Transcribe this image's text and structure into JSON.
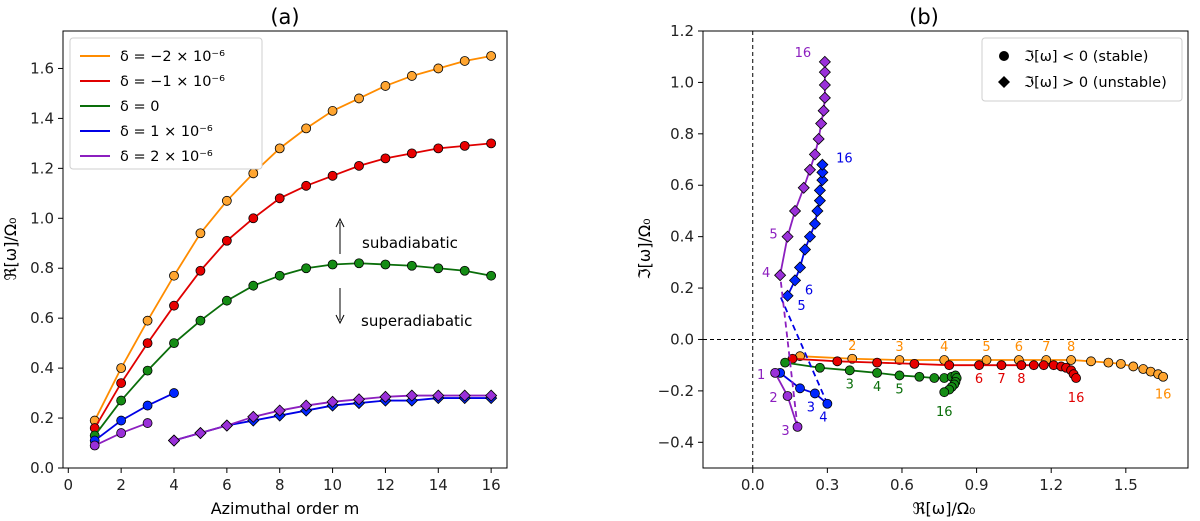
{
  "colors": {
    "d_m2": "#ff8c00",
    "d_m1": "#e00000",
    "d_0": "#0a6e0a",
    "d_p1": "#0000e6",
    "d_p2": "#8c1fbf",
    "marker_m2": "#ffa530",
    "marker_m1": "#e80000",
    "marker_0": "#148c14",
    "marker_p1": "#0026ff",
    "marker_p2": "#9a30d9"
  },
  "chart_data": [
    {
      "id": "a",
      "type": "line",
      "title": "(a)",
      "xlabel": "Azimuthal order m",
      "ylabel": "ℜ[ω]/Ω₀",
      "xlim": [
        -0.2,
        16.6
      ],
      "ylim": [
        0,
        1.75
      ],
      "xticks": [
        "0",
        "2",
        "4",
        "6",
        "8",
        "10",
        "12",
        "14",
        "16"
      ],
      "yticks": [
        "0.0",
        "0.2",
        "0.4",
        "0.6",
        "0.8",
        "1.0",
        "1.2",
        "1.4",
        "1.6"
      ],
      "legend_position": "top-left",
      "annotations": [
        "subadiabatic",
        "superadiabatic"
      ],
      "series": [
        {
          "key": "d_m2",
          "name": "δ = −2 × 10⁻⁶",
          "x": [
            1,
            2,
            3,
            4,
            5,
            6,
            7,
            8,
            9,
            10,
            11,
            12,
            13,
            14,
            15,
            16
          ],
          "values": [
            0.19,
            0.4,
            0.59,
            0.77,
            0.94,
            1.07,
            1.18,
            1.28,
            1.36,
            1.43,
            1.48,
            1.53,
            1.57,
            1.6,
            1.63,
            1.65
          ]
        },
        {
          "key": "d_m1",
          "name": "δ = −1 × 10⁻⁶",
          "x": [
            1,
            2,
            3,
            4,
            5,
            6,
            7,
            8,
            9,
            10,
            11,
            12,
            13,
            14,
            15,
            16
          ],
          "values": [
            0.16,
            0.34,
            0.5,
            0.65,
            0.79,
            0.91,
            1.0,
            1.08,
            1.13,
            1.17,
            1.21,
            1.24,
            1.26,
            1.28,
            1.29,
            1.3
          ]
        },
        {
          "key": "d_0",
          "name": "δ = 0",
          "x": [
            1,
            2,
            3,
            4,
            5,
            6,
            7,
            8,
            9,
            10,
            11,
            12,
            13,
            14,
            15,
            16
          ],
          "values": [
            0.13,
            0.27,
            0.39,
            0.5,
            0.59,
            0.67,
            0.73,
            0.77,
            0.8,
            0.815,
            0.82,
            0.815,
            0.81,
            0.8,
            0.79,
            0.77
          ]
        },
        {
          "key": "d_p1",
          "name": "δ = 1 × 10⁻⁶",
          "stable": [
            {
              "x": [
                1,
                2,
                3,
                4
              ],
              "values": [
                0.11,
                0.19,
                0.25,
                0.3
              ]
            }
          ],
          "unstable": {
            "x": [
              4,
              5,
              6,
              7,
              8,
              9,
              10,
              11,
              12,
              13,
              14,
              15,
              16
            ],
            "values": [
              0.11,
              0.14,
              0.17,
              0.19,
              0.21,
              0.23,
              0.25,
              0.26,
              0.27,
              0.27,
              0.28,
              0.28,
              0.28
            ]
          }
        },
        {
          "key": "d_p2",
          "name": "δ = 2 × 10⁻⁶",
          "stable": [
            {
              "x": [
                1,
                2,
                3
              ],
              "values": [
                0.09,
                0.14,
                0.18
              ]
            }
          ],
          "unstable": {
            "x": [
              4,
              5,
              6,
              7,
              8,
              9,
              10,
              11,
              12,
              13,
              14,
              15,
              16
            ],
            "values": [
              0.11,
              0.14,
              0.17,
              0.205,
              0.23,
              0.25,
              0.265,
              0.275,
              0.285,
              0.29,
              0.29,
              0.29,
              0.29
            ]
          }
        }
      ]
    },
    {
      "id": "b",
      "type": "scatter",
      "title": "(b)",
      "xlabel": "ℜ[ω]/Ω₀",
      "ylabel": "ℑ[ω]/Ω₀",
      "xlim": [
        -0.2,
        1.75
      ],
      "ylim": [
        -0.5,
        1.2
      ],
      "xticks": [
        "0.0",
        "0.3",
        "0.6",
        "0.9",
        "1.2",
        "1.5"
      ],
      "yticks": [
        "−0.4",
        "−0.2",
        "0.0",
        "0.2",
        "0.4",
        "0.6",
        "0.8",
        "1.0",
        "1.2"
      ],
      "legend_position": "top-right",
      "legend": [
        "ℑ[ω] < 0 (stable)",
        "ℑ[ω] > 0 (unstable)"
      ],
      "series": [
        {
          "key": "d_m2",
          "re": [
            0.19,
            0.4,
            0.59,
            0.77,
            0.94,
            1.07,
            1.18,
            1.28,
            1.36,
            1.43,
            1.48,
            1.53,
            1.57,
            1.6,
            1.63,
            1.65
          ],
          "im": [
            -0.065,
            -0.075,
            -0.08,
            -0.08,
            -0.08,
            -0.08,
            -0.08,
            -0.08,
            -0.085,
            -0.09,
            -0.095,
            -0.105,
            -0.115,
            -0.125,
            -0.135,
            -0.145
          ],
          "labels": [
            {
              "m": "2",
              "i": 1
            },
            {
              "m": "3",
              "i": 2
            },
            {
              "m": "4",
              "i": 3
            },
            {
              "m": "5",
              "i": 4
            },
            {
              "m": "6",
              "i": 5
            },
            {
              "m": "7",
              "i": 6
            },
            {
              "m": "8",
              "i": 7
            },
            {
              "m": "16",
              "i": 15
            }
          ]
        },
        {
          "key": "d_m1",
          "re": [
            0.16,
            0.34,
            0.5,
            0.65,
            0.79,
            0.91,
            1.0,
            1.08,
            1.13,
            1.17,
            1.21,
            1.24,
            1.26,
            1.28,
            1.29,
            1.3
          ],
          "im": [
            -0.075,
            -0.085,
            -0.09,
            -0.095,
            -0.1,
            -0.1,
            -0.1,
            -0.1,
            -0.1,
            -0.1,
            -0.1,
            -0.105,
            -0.11,
            -0.12,
            -0.135,
            -0.15
          ],
          "labels": [
            {
              "m": "6",
              "i": 5
            },
            {
              "m": "7",
              "i": 6
            },
            {
              "m": "8",
              "i": 7
            },
            {
              "m": "16",
              "i": 15
            }
          ]
        },
        {
          "key": "d_0",
          "re": [
            0.13,
            0.27,
            0.39,
            0.5,
            0.59,
            0.67,
            0.73,
            0.77,
            0.8,
            0.815,
            0.82,
            0.815,
            0.81,
            0.8,
            0.79,
            0.77
          ],
          "im": [
            -0.09,
            -0.11,
            -0.12,
            -0.13,
            -0.14,
            -0.145,
            -0.15,
            -0.15,
            -0.145,
            -0.14,
            -0.15,
            -0.165,
            -0.175,
            -0.185,
            -0.195,
            -0.205
          ],
          "labels": [
            {
              "m": "3",
              "i": 2
            },
            {
              "m": "4",
              "i": 3
            },
            {
              "m": "5",
              "i": 4
            },
            {
              "m": "16",
              "i": 15
            }
          ]
        },
        {
          "key": "d_p1",
          "stable": {
            "re": [
              0.11,
              0.19,
              0.25,
              0.3
            ],
            "im": [
              -0.13,
              -0.19,
              -0.21,
              -0.25
            ]
          },
          "unstable": {
            "re": [
              0.14,
              0.17,
              0.19,
              0.21,
              0.23,
              0.25,
              0.26,
              0.27,
              0.27,
              0.28,
              0.28,
              0.28
            ],
            "im": [
              0.17,
              0.23,
              0.28,
              0.35,
              0.4,
              0.45,
              0.5,
              0.54,
              0.58,
              0.62,
              0.65,
              0.68
            ]
          },
          "bridge": {
            "re": [
              0.3,
              0.11
            ],
            "im": [
              -0.25,
              0.17
            ]
          },
          "labels": [
            {
              "m": "3",
              "set": "stable",
              "i": 2
            },
            {
              "m": "4",
              "set": "stable",
              "i": 3
            },
            {
              "m": "5",
              "set": "unstable",
              "i": 0
            },
            {
              "m": "6",
              "set": "unstable",
              "i": 1
            },
            {
              "m": "16",
              "set": "unstable",
              "i": 11
            }
          ]
        },
        {
          "key": "d_p2",
          "stable": {
            "re": [
              0.09,
              0.14,
              0.18
            ],
            "im": [
              -0.13,
              -0.22,
              -0.34
            ]
          },
          "unstable": {
            "re": [
              0.11,
              0.14,
              0.17,
              0.205,
              0.23,
              0.25,
              0.265,
              0.275,
              0.285,
              0.29,
              0.29,
              0.29,
              0.29
            ],
            "im": [
              0.25,
              0.4,
              0.5,
              0.59,
              0.66,
              0.72,
              0.78,
              0.84,
              0.89,
              0.94,
              0.99,
              1.04,
              1.08
            ]
          },
          "bridge": {
            "re": [
              0.18,
              0.11
            ],
            "im": [
              -0.34,
              0.25
            ]
          },
          "labels": [
            {
              "m": "1",
              "set": "stable",
              "i": 0
            },
            {
              "m": "2",
              "set": "stable",
              "i": 1
            },
            {
              "m": "3",
              "set": "stable",
              "i": 2
            },
            {
              "m": "4",
              "set": "unstable",
              "i": 0
            },
            {
              "m": "5",
              "set": "unstable",
              "i": 1
            },
            {
              "m": "16",
              "set": "unstable",
              "i": 12
            }
          ]
        }
      ]
    }
  ]
}
